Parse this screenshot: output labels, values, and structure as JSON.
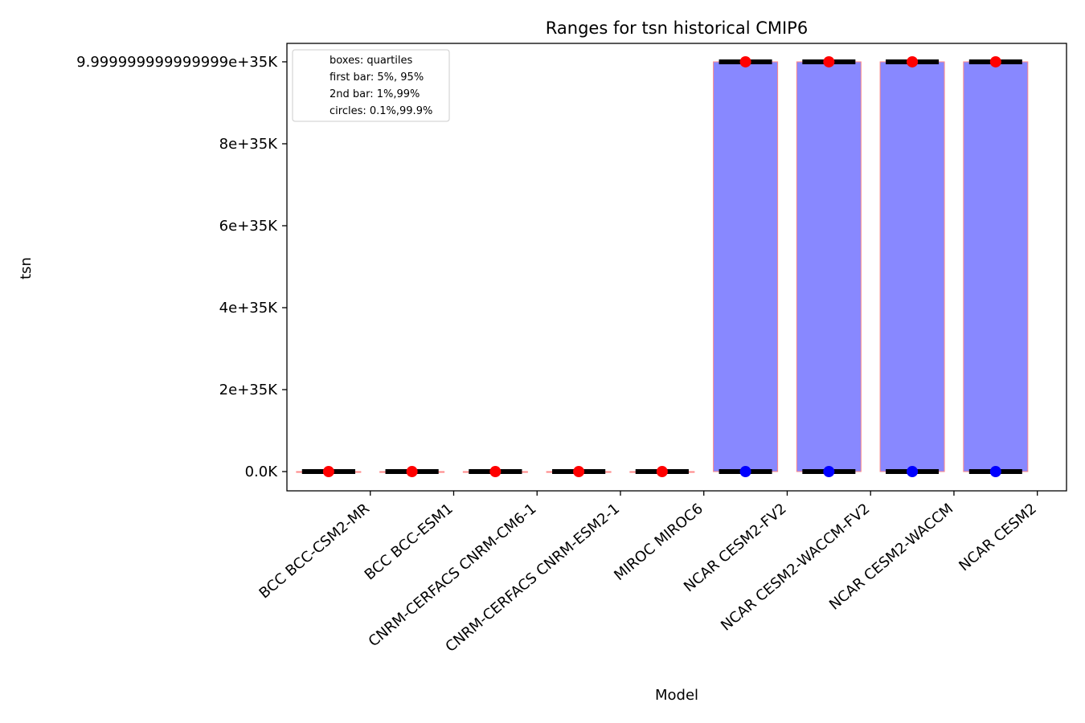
{
  "chart_data": {
    "type": "box",
    "title": "Ranges for tsn historical CMIP6",
    "xlabel": "Model",
    "ylabel": "tsn",
    "ylim": [
      -4.7e+34,
      1.045e+36
    ],
    "y_ticks": [
      {
        "value": 0,
        "label": "0.0K"
      },
      {
        "value": 2e+35,
        "label": "2e+35K"
      },
      {
        "value": 4e+35,
        "label": "4e+35K"
      },
      {
        "value": 6e+35,
        "label": "6e+35K"
      },
      {
        "value": 8e+35,
        "label": "8e+35K"
      },
      {
        "value": 1e+36,
        "label": "9.999999999999999e+35K"
      }
    ],
    "categories": [
      "BCC BCC-CSM2-MR",
      "BCC BCC-ESM1",
      "CNRM-CERFACS CNRM-CM6-1",
      "CNRM-CERFACS CNRM-ESM2-1",
      "MIROC MIROC6",
      "NCAR CESM2-FV2",
      "NCAR CESM2-WACCM-FV2",
      "NCAR CESM2-WACCM",
      "NCAR CESM2"
    ],
    "boxes": [
      {
        "q1": 0,
        "q3": 0,
        "p5": 0,
        "p95": 0,
        "p1": 0,
        "p99": 0,
        "p01": 0,
        "p999": 0
      },
      {
        "q1": 0,
        "q3": 0,
        "p5": 0,
        "p95": 0,
        "p1": 0,
        "p99": 0,
        "p01": 0,
        "p999": 0
      },
      {
        "q1": 0,
        "q3": 0,
        "p5": 0,
        "p95": 0,
        "p1": 0,
        "p99": 0,
        "p01": 0,
        "p999": 0
      },
      {
        "q1": 0,
        "q3": 0,
        "p5": 0,
        "p95": 0,
        "p1": 0,
        "p99": 0,
        "p01": 0,
        "p999": 0
      },
      {
        "q1": 0,
        "q3": 0,
        "p5": 0,
        "p95": 0,
        "p1": 0,
        "p99": 0,
        "p01": 0,
        "p999": 0
      },
      {
        "q1": 0,
        "q3": 1e+36,
        "p5": 0,
        "p95": 1e+36,
        "p1": 0,
        "p99": 1e+36,
        "p01": 0,
        "p999": 1e+36
      },
      {
        "q1": 0,
        "q3": 1e+36,
        "p5": 0,
        "p95": 1e+36,
        "p1": 0,
        "p99": 1e+36,
        "p01": 0,
        "p999": 1e+36
      },
      {
        "q1": 0,
        "q3": 1e+36,
        "p5": 0,
        "p95": 1e+36,
        "p1": 0,
        "p99": 1e+36,
        "p01": 0,
        "p999": 1e+36
      },
      {
        "q1": 0,
        "q3": 1e+36,
        "p5": 0,
        "p95": 1e+36,
        "p1": 0,
        "p99": 1e+36,
        "p01": 0,
        "p999": 1e+36
      }
    ],
    "legend": {
      "placement": "top-left",
      "entries": [
        "boxes: quartiles",
        "first bar: 5%, 95%",
        "2nd bar: 1%,99%",
        "circles: 0.1%,99.9%"
      ]
    },
    "colors": {
      "box": "#8888ff",
      "box_edge": "#ff8888",
      "whisker": "#000000",
      "circle_high": "#ff0000",
      "circle_low": "#0000ff"
    },
    "grid": false
  }
}
